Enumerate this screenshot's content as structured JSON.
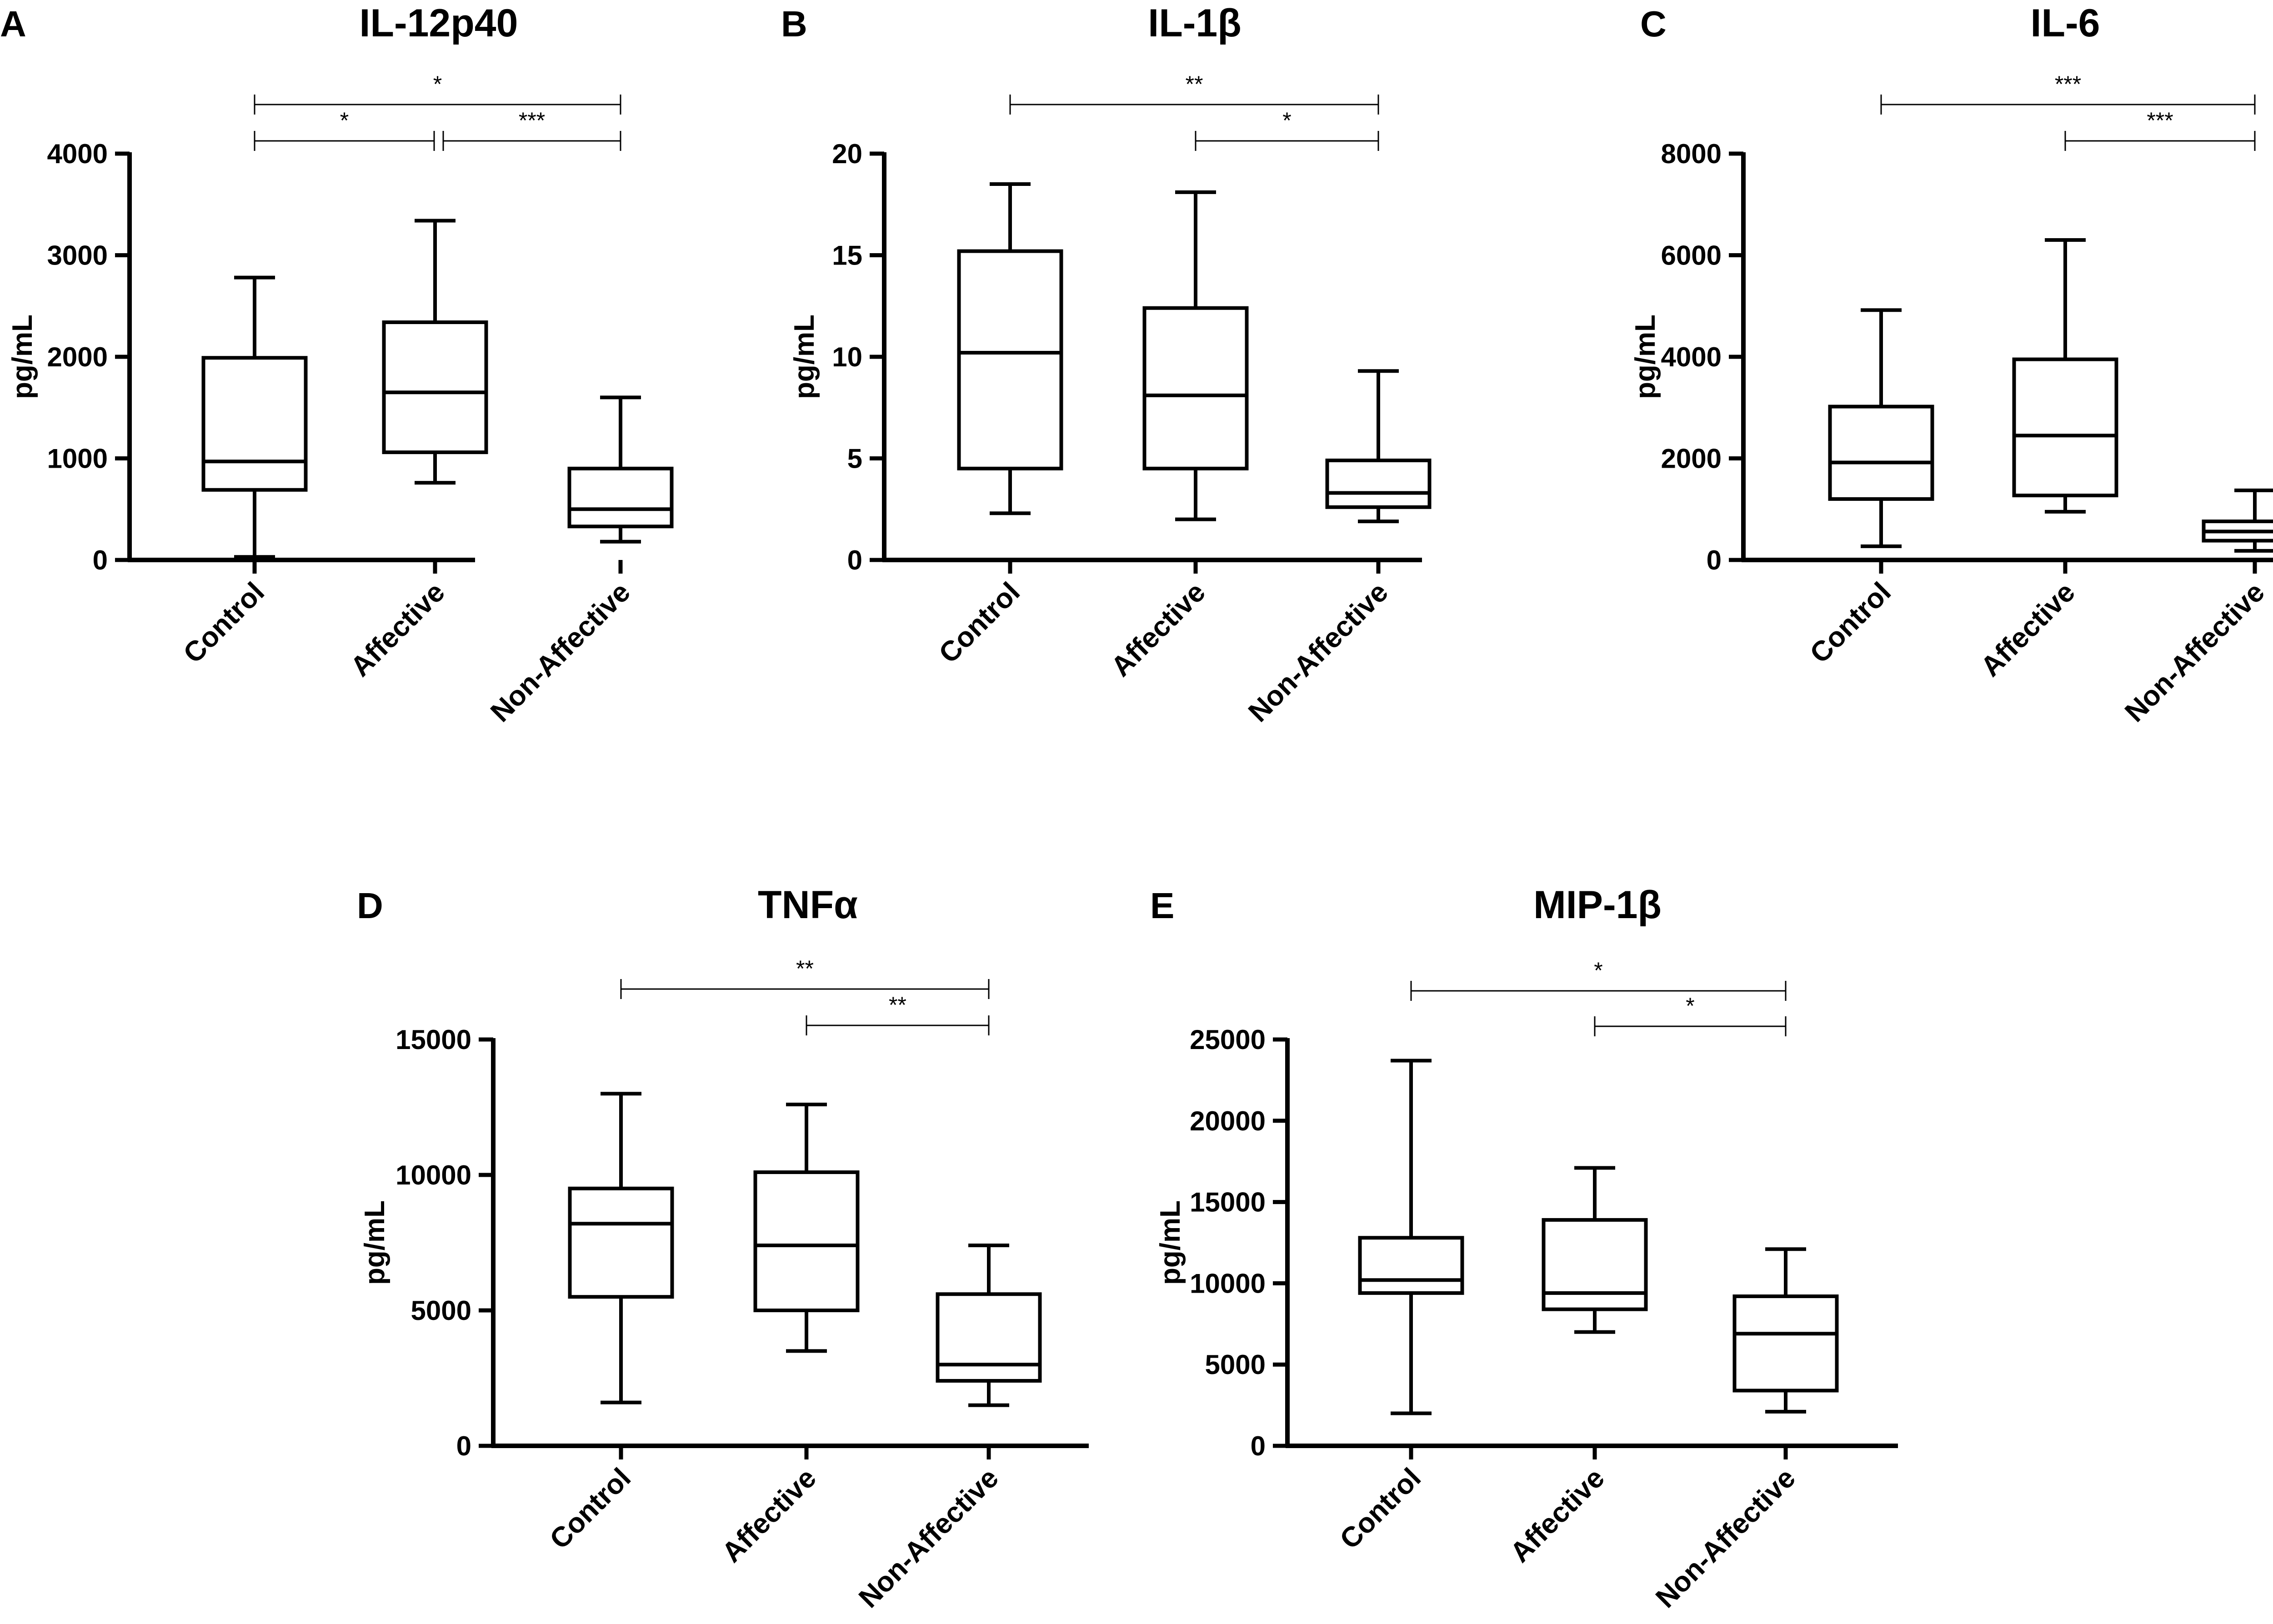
{
  "chart_data": [
    {
      "type": "box",
      "panel": "A",
      "title": "IL-12p40",
      "ylabel": "pg/mL",
      "ylim": [
        0,
        4000
      ],
      "yticks": [
        0,
        1000,
        2000,
        3000,
        4000
      ],
      "ytick_labels": [
        "0",
        "1000",
        "2000",
        "3000",
        "4000"
      ],
      "categories": [
        "Control",
        "Affective",
        "Non-Affective"
      ],
      "boxes": [
        {
          "min": 30,
          "q1": 690,
          "median": 970,
          "q3": 1990,
          "max": 2780
        },
        {
          "min": 760,
          "q1": 1060,
          "median": 1650,
          "q3": 2340,
          "max": 3340
        },
        {
          "min": 180,
          "q1": 330,
          "median": 500,
          "q3": 900,
          "max": 1600
        }
      ],
      "significance": [
        {
          "from": 0,
          "to": 2,
          "label": "*",
          "level": 2
        },
        {
          "from": 0,
          "to": 1,
          "label": "*",
          "level": 1
        },
        {
          "from": 1,
          "to": 2,
          "label": "***",
          "level": 1
        }
      ]
    },
    {
      "type": "box",
      "panel": "B",
      "title": "IL-1β",
      "ylabel": "pg/mL",
      "ylim": [
        0,
        20
      ],
      "yticks": [
        0,
        5,
        10,
        15,
        20
      ],
      "ytick_labels": [
        "0",
        "5",
        "10",
        "15",
        "20"
      ],
      "categories": [
        "Control",
        "Affective",
        "Non-Affective"
      ],
      "boxes": [
        {
          "min": 2.3,
          "q1": 4.5,
          "median": 10.2,
          "q3": 15.2,
          "max": 18.5
        },
        {
          "min": 2.0,
          "q1": 4.5,
          "median": 8.1,
          "q3": 12.4,
          "max": 18.1
        },
        {
          "min": 1.9,
          "q1": 2.6,
          "median": 3.3,
          "q3": 4.9,
          "max": 9.3
        }
      ],
      "significance": [
        {
          "from": 0,
          "to": 2,
          "label": "**",
          "level": 2
        },
        {
          "from": 1,
          "to": 2,
          "label": "*",
          "level": 1
        }
      ]
    },
    {
      "type": "box",
      "panel": "C",
      "title": "IL-6",
      "ylabel": "pg/mL",
      "ylim": [
        0,
        8000
      ],
      "yticks": [
        0,
        2000,
        4000,
        6000,
        8000
      ],
      "ytick_labels": [
        "0",
        "2000",
        "4000",
        "6000",
        "8000"
      ],
      "categories": [
        "Control",
        "Affective",
        "Non-Affective"
      ],
      "boxes": [
        {
          "min": 270,
          "q1": 1200,
          "median": 1920,
          "q3": 3020,
          "max": 4920
        },
        {
          "min": 950,
          "q1": 1270,
          "median": 2450,
          "q3": 3950,
          "max": 6300
        },
        {
          "min": 180,
          "q1": 380,
          "median": 560,
          "q3": 760,
          "max": 1370
        }
      ],
      "significance": [
        {
          "from": 0,
          "to": 2,
          "label": "***",
          "level": 2
        },
        {
          "from": 1,
          "to": 2,
          "label": "***",
          "level": 1
        }
      ]
    },
    {
      "type": "box",
      "panel": "D",
      "title": "TNFα",
      "ylabel": "pg/mL",
      "ylim": [
        0,
        15000
      ],
      "yticks": [
        0,
        5000,
        10000,
        15000
      ],
      "ytick_labels": [
        "0",
        "5000",
        "10000",
        "15000"
      ],
      "categories": [
        "Control",
        "Affective",
        "Non-Affective"
      ],
      "boxes": [
        {
          "min": 1600,
          "q1": 5500,
          "median": 8200,
          "q3": 9500,
          "max": 13000
        },
        {
          "min": 3500,
          "q1": 5000,
          "median": 7400,
          "q3": 10100,
          "max": 12600
        },
        {
          "min": 1500,
          "q1": 2400,
          "median": 3000,
          "q3": 5600,
          "max": 7400
        }
      ],
      "significance": [
        {
          "from": 0,
          "to": 2,
          "label": "**",
          "level": 2
        },
        {
          "from": 1,
          "to": 2,
          "label": "**",
          "level": 1
        }
      ]
    },
    {
      "type": "box",
      "panel": "E",
      "title": "MIP-1β",
      "ylabel": "pg/mL",
      "ylim": [
        0,
        25000
      ],
      "yticks": [
        0,
        5000,
        10000,
        15000,
        20000,
        25000
      ],
      "ytick_labels": [
        "0",
        "5000",
        "10000",
        "15000",
        "20000",
        "25000"
      ],
      "categories": [
        "Control",
        "Affective",
        "Non-Affective"
      ],
      "boxes": [
        {
          "min": 2000,
          "q1": 9400,
          "median": 10200,
          "q3": 12800,
          "max": 23700
        },
        {
          "min": 7000,
          "q1": 8400,
          "median": 9400,
          "q3": 13900,
          "max": 17100
        },
        {
          "min": 2100,
          "q1": 3400,
          "median": 6900,
          "q3": 9200,
          "max": 12100
        }
      ],
      "significance": [
        {
          "from": 0,
          "to": 2,
          "label": "*",
          "level": 2
        },
        {
          "from": 1,
          "to": 2,
          "label": "*",
          "level": 1
        }
      ]
    }
  ]
}
